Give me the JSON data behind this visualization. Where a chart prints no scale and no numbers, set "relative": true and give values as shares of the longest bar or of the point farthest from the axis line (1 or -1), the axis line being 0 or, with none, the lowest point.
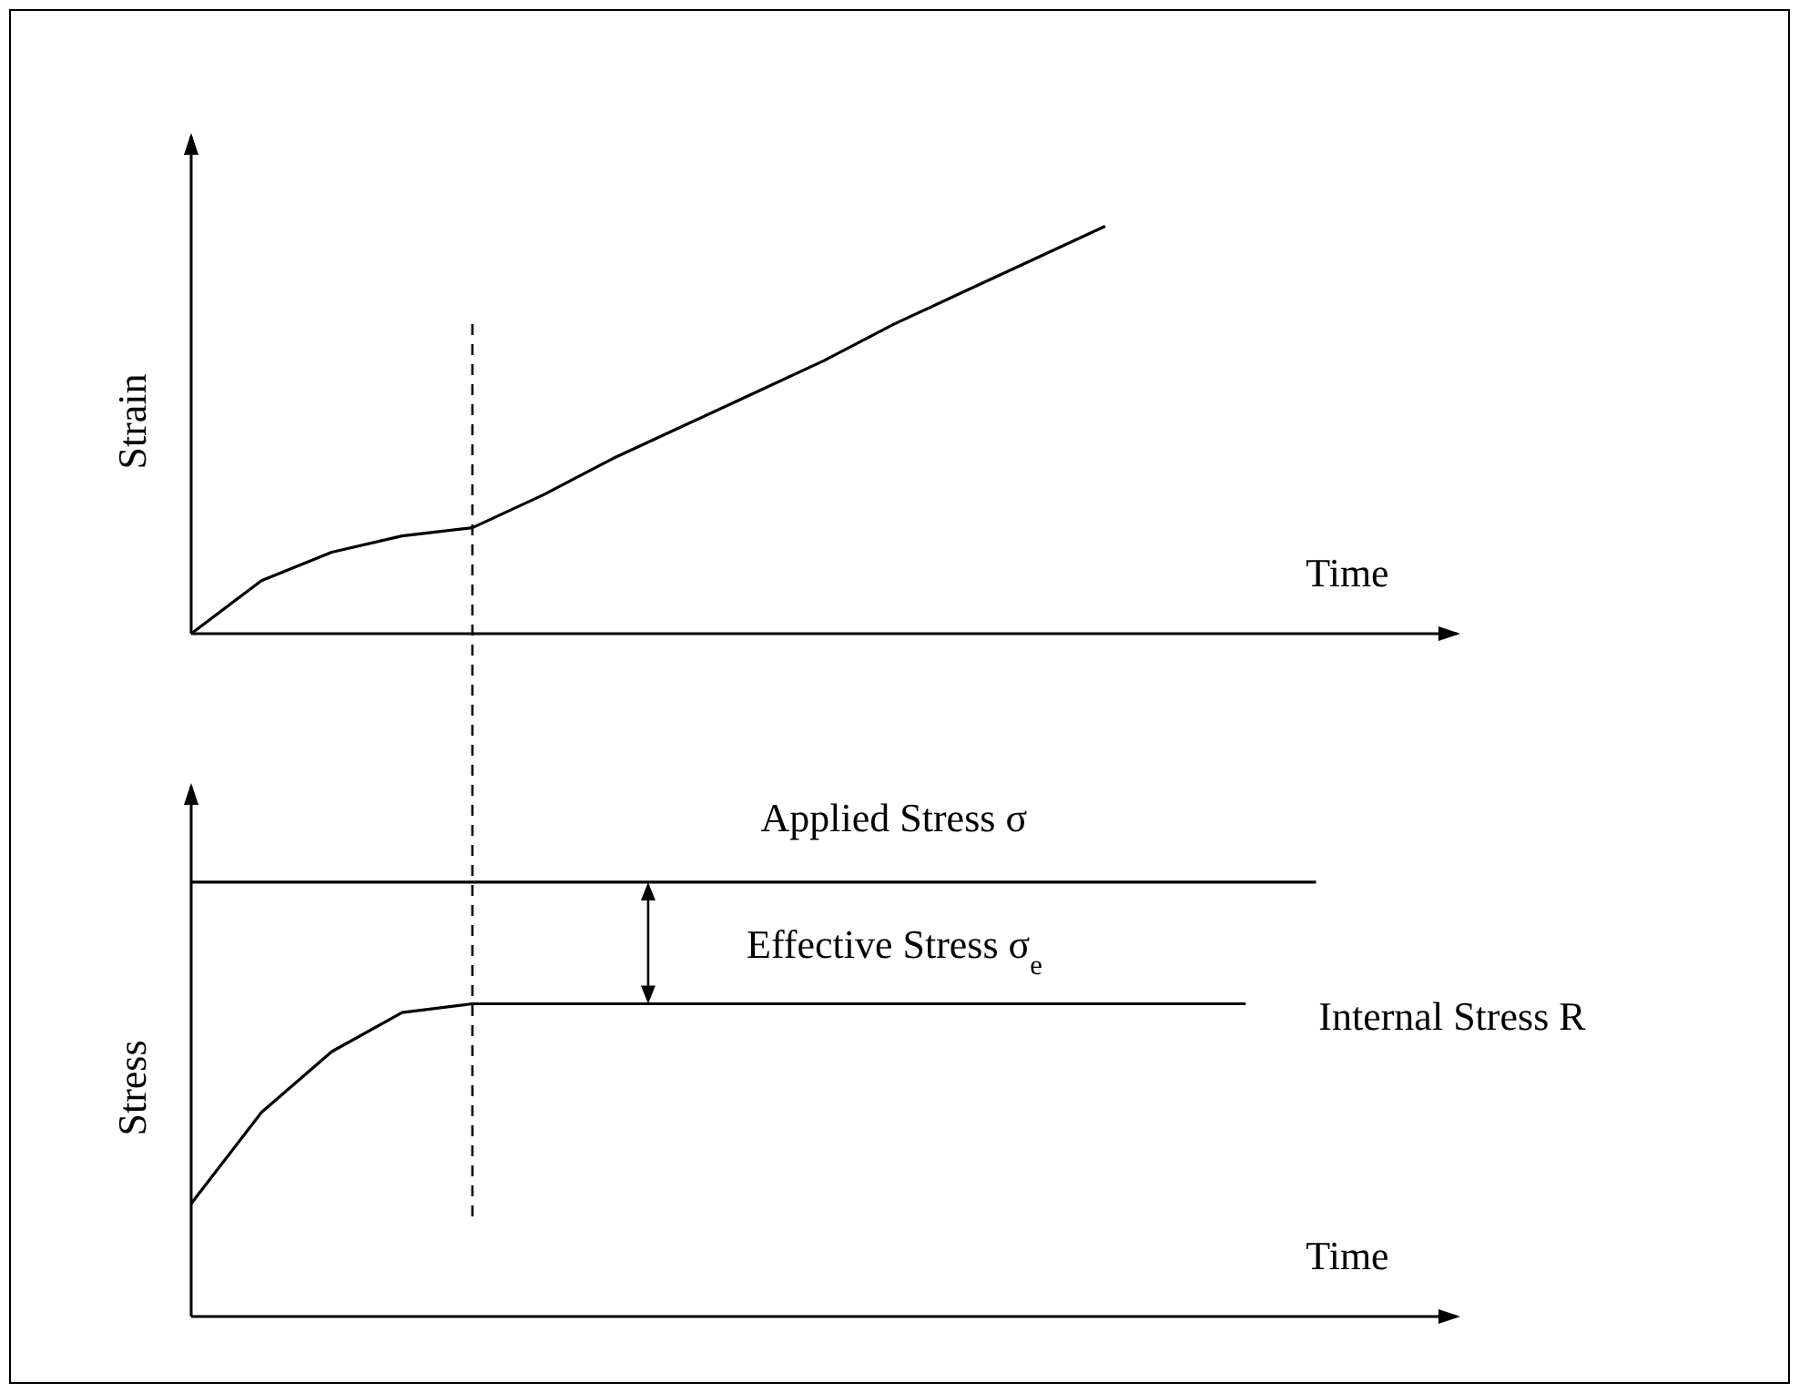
{
  "chart_data": [
    {
      "type": "line",
      "ylabel": "Strain",
      "xlabel": "Time",
      "relative": true,
      "categories": [
        null,
        null,
        null,
        null,
        null,
        null,
        null,
        null,
        null,
        null,
        null,
        null,
        null,
        null,
        null,
        null,
        null,
        null,
        null
      ],
      "series": [
        {
          "color": "#000000",
          "values": [
            0,
            0.13,
            0.2,
            0.24,
            0.26,
            0.34,
            0.43,
            0.51,
            0.59,
            0.67,
            0.76,
            0.84,
            0.92,
            1.0,
            null,
            null,
            null,
            null,
            null
          ]
        }
      ]
    },
    {
      "type": "line",
      "ylabel": "Stress",
      "xlabel": "Time",
      "relative": true,
      "categories": [
        null,
        null,
        null,
        null,
        null,
        null,
        null,
        null,
        null,
        null,
        null,
        null,
        null,
        null,
        null,
        null,
        null,
        null,
        null
      ],
      "series": [
        {
          "name": "Applied Stress  σ",
          "color": "#000000",
          "values": [
            1,
            1,
            1,
            1,
            1,
            1,
            1,
            1,
            1,
            1,
            1,
            1,
            1,
            1,
            1,
            1,
            1,
            null,
            null
          ]
        },
        {
          "name": "Internal Stress  R",
          "color": "#000000",
          "values": [
            0.26,
            0.47,
            0.61,
            0.7,
            0.72,
            0.72,
            0.72,
            0.72,
            0.72,
            0.72,
            0.72,
            0.72,
            0.72,
            0.72,
            0.72,
            0.72,
            null,
            null,
            null
          ]
        }
      ],
      "annotations": [
        "Effective Stress  σ$_{e}$"
      ]
    }
  ]
}
